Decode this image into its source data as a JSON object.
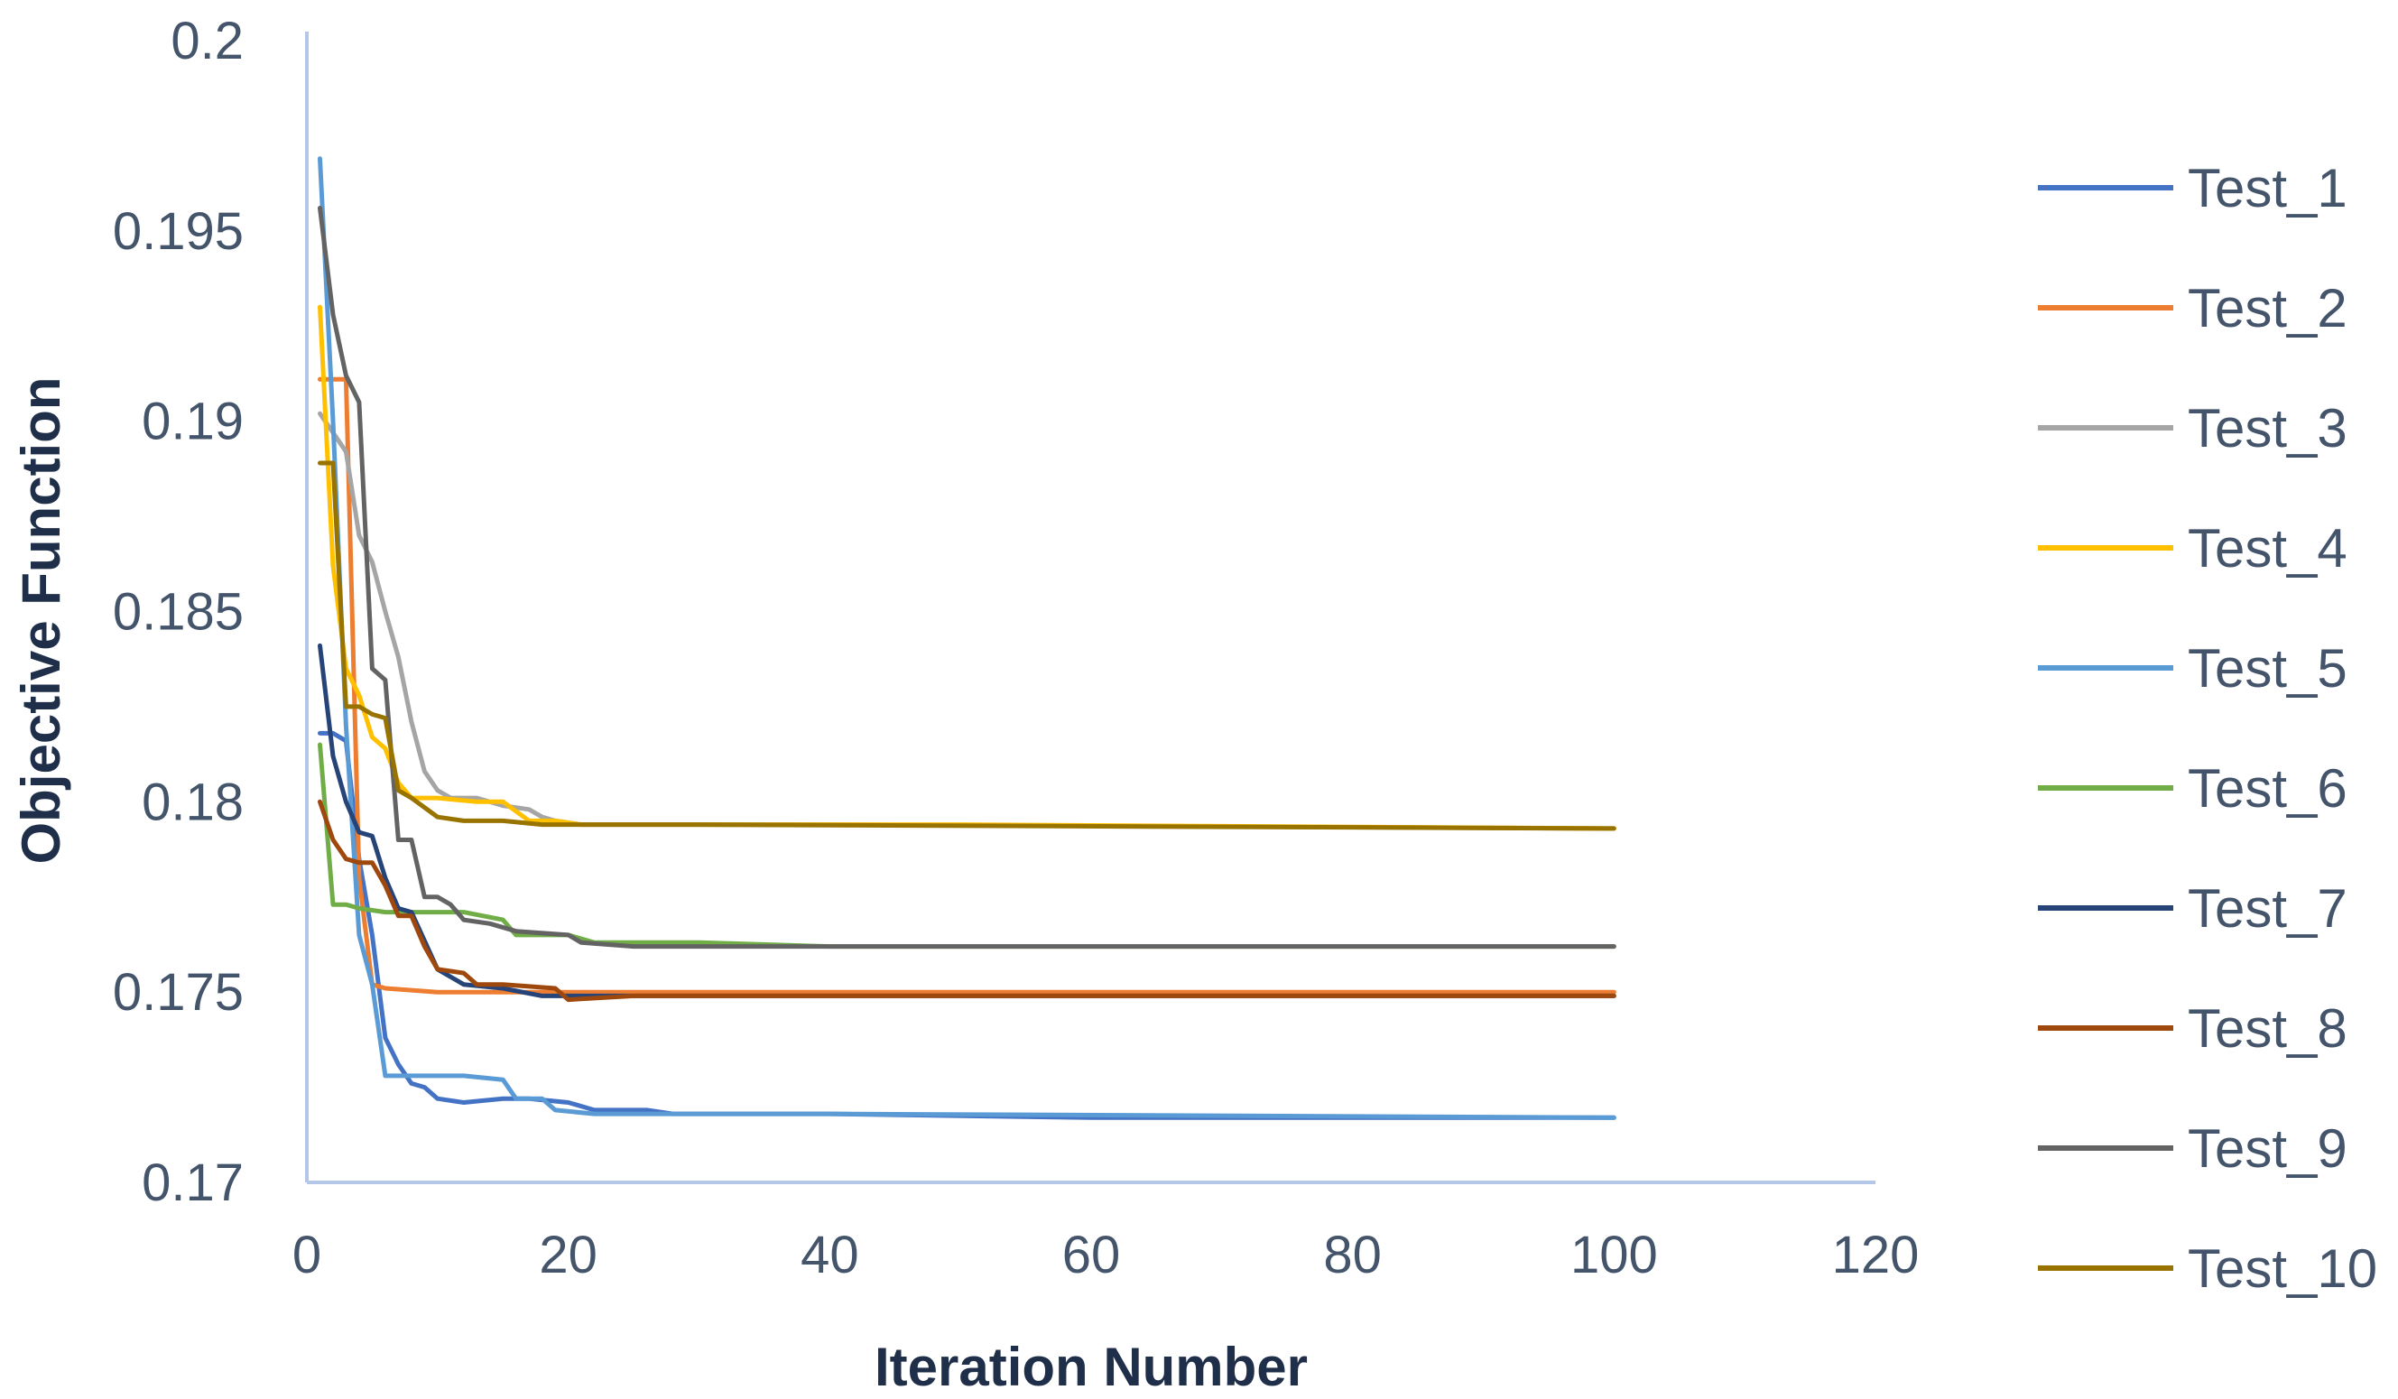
{
  "chart_data": {
    "type": "line",
    "title": "",
    "xlabel": "Iteration Number",
    "ylabel": "Objective Function",
    "xlim": [
      0,
      120
    ],
    "ylim": [
      0.17,
      0.2
    ],
    "x_ticks": [
      0,
      20,
      40,
      60,
      80,
      100,
      120
    ],
    "y_ticks": [
      0.17,
      0.175,
      0.18,
      0.185,
      0.19,
      0.195,
      0.2
    ],
    "x_tick_labels": [
      "0",
      "20",
      "40",
      "60",
      "80",
      "100",
      "120"
    ],
    "y_tick_labels": [
      "0.17",
      "0.175",
      "0.18",
      "0.185",
      "0.19",
      "0.195",
      "0.2"
    ],
    "grid": false,
    "legend_position": "right",
    "series": [
      {
        "name": "Test_1",
        "color": "#4472c4",
        "points": [
          [
            1,
            0.1818
          ],
          [
            2,
            0.1818
          ],
          [
            3,
            0.1816
          ],
          [
            4,
            0.1785
          ],
          [
            5,
            0.1765
          ],
          [
            6,
            0.1738
          ],
          [
            7,
            0.1731
          ],
          [
            8,
            0.1726
          ],
          [
            9,
            0.1725
          ],
          [
            10,
            0.1722
          ],
          [
            12,
            0.1721
          ],
          [
            15,
            0.1722
          ],
          [
            17,
            0.1722
          ],
          [
            20,
            0.1721
          ],
          [
            22,
            0.1719
          ],
          [
            26,
            0.1719
          ],
          [
            28,
            0.1718
          ],
          [
            40,
            0.1718
          ],
          [
            60,
            0.1717
          ],
          [
            100,
            0.1717
          ]
        ]
      },
      {
        "name": "Test_2",
        "color": "#ed7d31",
        "points": [
          [
            1,
            0.1911
          ],
          [
            3,
            0.1911
          ],
          [
            4,
            0.178
          ],
          [
            5,
            0.1752
          ],
          [
            6,
            0.1751
          ],
          [
            10,
            0.175
          ],
          [
            20,
            0.175
          ],
          [
            100,
            0.175
          ]
        ]
      },
      {
        "name": "Test_3",
        "color": "#a5a5a5",
        "points": [
          [
            1,
            0.1902
          ],
          [
            3,
            0.1892
          ],
          [
            4,
            0.187
          ],
          [
            5,
            0.1863
          ],
          [
            6,
            0.185
          ],
          [
            7,
            0.1838
          ],
          [
            8,
            0.1821
          ],
          [
            9,
            0.1808
          ],
          [
            10,
            0.1803
          ],
          [
            11,
            0.1801
          ],
          [
            13,
            0.1801
          ],
          [
            15,
            0.1799
          ],
          [
            17,
            0.1798
          ],
          [
            18,
            0.1796
          ],
          [
            19,
            0.1795
          ],
          [
            21,
            0.1794
          ],
          [
            25,
            0.1794
          ],
          [
            40,
            0.1794
          ],
          [
            100,
            0.1793
          ]
        ]
      },
      {
        "name": "Test_4",
        "color": "#ffc000",
        "points": [
          [
            1,
            0.193
          ],
          [
            2,
            0.1862
          ],
          [
            3,
            0.1835
          ],
          [
            4,
            0.1828
          ],
          [
            5,
            0.1817
          ],
          [
            6,
            0.1814
          ],
          [
            7,
            0.1805
          ],
          [
            8,
            0.1801
          ],
          [
            10,
            0.1801
          ],
          [
            13,
            0.18
          ],
          [
            15,
            0.18
          ],
          [
            17,
            0.1795
          ],
          [
            19,
            0.1795
          ],
          [
            21,
            0.1794
          ],
          [
            30,
            0.1794
          ],
          [
            50,
            0.1794
          ],
          [
            100,
            0.1793
          ]
        ]
      },
      {
        "name": "Test_5",
        "color": "#5b9bd5",
        "points": [
          [
            1,
            0.1969
          ],
          [
            2,
            0.19
          ],
          [
            3,
            0.182
          ],
          [
            4,
            0.1765
          ],
          [
            5,
            0.1752
          ],
          [
            6,
            0.1728
          ],
          [
            8,
            0.1728
          ],
          [
            12,
            0.1728
          ],
          [
            15,
            0.1727
          ],
          [
            16,
            0.1722
          ],
          [
            18,
            0.1722
          ],
          [
            19,
            0.1719
          ],
          [
            22,
            0.1718
          ],
          [
            40,
            0.1718
          ],
          [
            100,
            0.1717
          ]
        ]
      },
      {
        "name": "Test_6",
        "color": "#70ad47",
        "points": [
          [
            1,
            0.1815
          ],
          [
            2,
            0.1773
          ],
          [
            3,
            0.1773
          ],
          [
            4,
            0.1772
          ],
          [
            6,
            0.1771
          ],
          [
            8,
            0.1771
          ],
          [
            12,
            0.1771
          ],
          [
            15,
            0.1769
          ],
          [
            16,
            0.1765
          ],
          [
            20,
            0.1765
          ],
          [
            22,
            0.1763
          ],
          [
            30,
            0.1763
          ],
          [
            40,
            0.1762
          ],
          [
            100,
            0.1762
          ]
        ]
      },
      {
        "name": "Test_7",
        "color": "#264478",
        "points": [
          [
            1,
            0.1841
          ],
          [
            2,
            0.1812
          ],
          [
            3,
            0.18
          ],
          [
            4,
            0.1792
          ],
          [
            5,
            0.1791
          ],
          [
            6,
            0.178
          ],
          [
            7,
            0.1772
          ],
          [
            8,
            0.1771
          ],
          [
            10,
            0.1756
          ],
          [
            12,
            0.1752
          ],
          [
            15,
            0.1751
          ],
          [
            18,
            0.1749
          ],
          [
            20,
            0.1749
          ],
          [
            30,
            0.1749
          ],
          [
            100,
            0.1749
          ]
        ]
      },
      {
        "name": "Test_8",
        "color": "#9e480e",
        "points": [
          [
            1,
            0.18
          ],
          [
            2,
            0.179
          ],
          [
            3,
            0.1785
          ],
          [
            4,
            0.1784
          ],
          [
            5,
            0.1784
          ],
          [
            6,
            0.1778
          ],
          [
            7,
            0.177
          ],
          [
            8,
            0.177
          ],
          [
            9,
            0.1762
          ],
          [
            10,
            0.1756
          ],
          [
            12,
            0.1755
          ],
          [
            13,
            0.1752
          ],
          [
            15,
            0.1752
          ],
          [
            19,
            0.1751
          ],
          [
            20,
            0.1748
          ],
          [
            25,
            0.1749
          ],
          [
            40,
            0.1749
          ],
          [
            100,
            0.1749
          ]
        ]
      },
      {
        "name": "Test_9",
        "color": "#636363",
        "points": [
          [
            1,
            0.1956
          ],
          [
            2,
            0.1928
          ],
          [
            3,
            0.1912
          ],
          [
            4,
            0.1905
          ],
          [
            5,
            0.1835
          ],
          [
            6,
            0.1832
          ],
          [
            7,
            0.179
          ],
          [
            8,
            0.179
          ],
          [
            9,
            0.1775
          ],
          [
            10,
            0.1775
          ],
          [
            11,
            0.1773
          ],
          [
            12,
            0.1769
          ],
          [
            14,
            0.1768
          ],
          [
            16,
            0.1766
          ],
          [
            20,
            0.1765
          ],
          [
            21,
            0.1763
          ],
          [
            25,
            0.1762
          ],
          [
            40,
            0.1762
          ],
          [
            100,
            0.1762
          ]
        ]
      },
      {
        "name": "Test_10",
        "color": "#997300",
        "points": [
          [
            1,
            0.1889
          ],
          [
            2,
            0.1889
          ],
          [
            3,
            0.1825
          ],
          [
            4,
            0.1825
          ],
          [
            5,
            0.1823
          ],
          [
            6,
            0.1822
          ],
          [
            7,
            0.1803
          ],
          [
            8,
            0.1801
          ],
          [
            10,
            0.1796
          ],
          [
            12,
            0.1795
          ],
          [
            15,
            0.1795
          ],
          [
            18,
            0.1794
          ],
          [
            30,
            0.1794
          ],
          [
            100,
            0.1793
          ]
        ]
      }
    ]
  }
}
